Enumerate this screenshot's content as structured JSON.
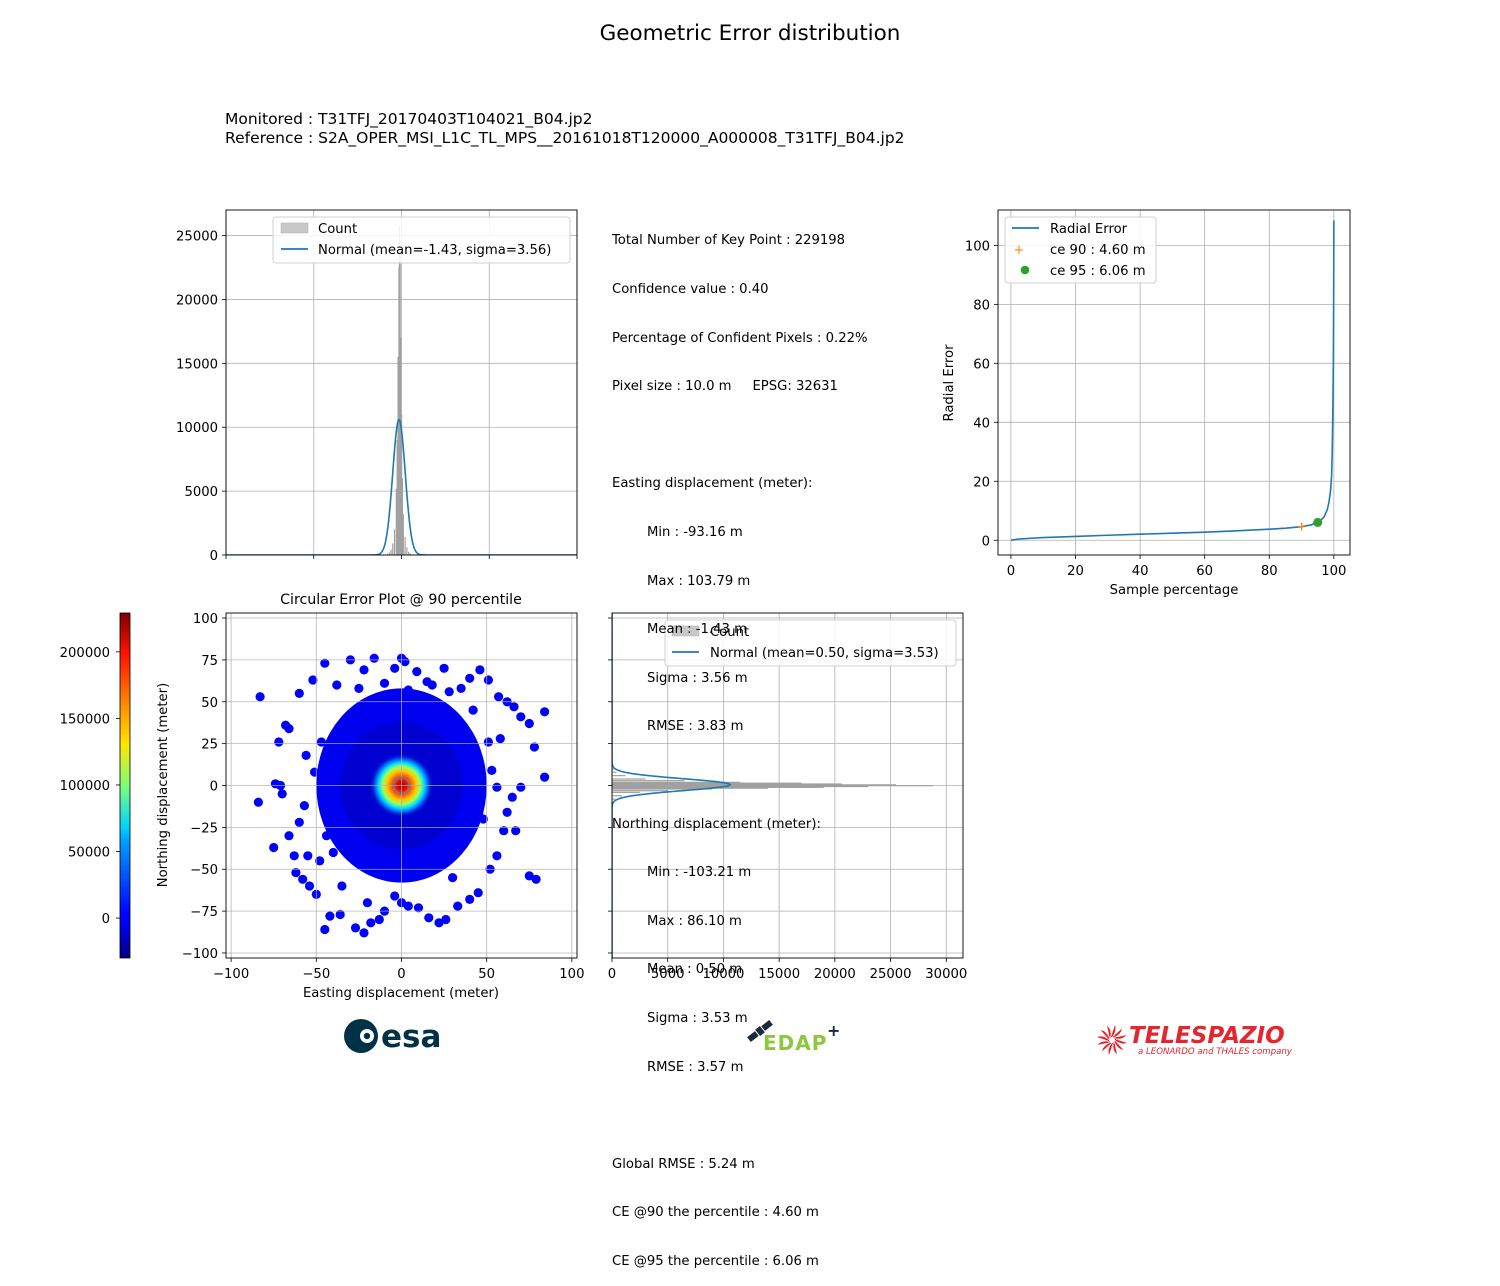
{
  "figure": {
    "title": "Geometric Error distribution",
    "monitored_label": "Monitored : T31TFJ_20170403T104021_B04.jp2",
    "reference_label": "Reference : S2A_OPER_MSI_L1C_TL_MPS__20161018T120000_A000008_T31TFJ_B04.jp2"
  },
  "stats": {
    "lines": [
      "Total Number of Key Point : 229198",
      "Confidence value : 0.40",
      "Percentage of Confident Pixels : 0.22%",
      "Pixel size : 10.0 m     EPSG: 32631"
    ],
    "easting_header": "Easting displacement (meter):",
    "easting": [
      "Min : -93.16 m",
      "Max : 103.79 m",
      "Mean : -1.43 m",
      "Sigma : 3.56 m",
      "RMSE : 3.83 m"
    ],
    "northing_header": "Northing displacement (meter):",
    "northing": [
      "Min : -103.21 m",
      "Max : 86.10 m",
      "Mean : 0.50 m",
      "Sigma : 3.53 m",
      "RMSE : 3.57 m"
    ],
    "global": [
      "Global RMSE : 5.24 m",
      "CE @90 the percentile : 4.60 m",
      "CE @95 the percentile : 6.06 m"
    ]
  },
  "logos": {
    "esa": "esa",
    "edap": "EDAP",
    "telespazio": "TELESPAZIO",
    "telespazio_tag": "a LEONARDO and THALES company"
  },
  "colors": {
    "line": "#1f77b4",
    "hist": "#a0a0a0",
    "ce90": "#ff7f0e",
    "ce95": "#2ca02c",
    "scatter": "#0000ff"
  },
  "chart_data": [
    {
      "id": "easting_hist",
      "type": "bar",
      "title": "",
      "xlabel": "",
      "ylabel": "",
      "xlim": [
        -100,
        100
      ],
      "ylim": [
        0,
        27000
      ],
      "yticks": [
        0,
        5000,
        10000,
        15000,
        20000,
        25000
      ],
      "grid": true,
      "legend": "upper-center",
      "series": [
        {
          "name": "Count",
          "kind": "hist",
          "bins": [
            [
              -10,
              20
            ],
            [
              -9,
              40
            ],
            [
              -8,
              90
            ],
            [
              -7,
              200
            ],
            [
              -6,
              420
            ],
            [
              -5,
              900
            ],
            [
              -4,
              2000
            ],
            [
              -3,
              5200
            ],
            [
              -2.5,
              9000
            ],
            [
              -2,
              15500
            ],
            [
              -1.5,
              22500
            ],
            [
              -1.2,
              25800
            ],
            [
              -0.8,
              24000
            ],
            [
              -0.4,
              17000
            ],
            [
              0,
              11000
            ],
            [
              0.5,
              6000
            ],
            [
              1,
              3200
            ],
            [
              2,
              1400
            ],
            [
              3,
              600
            ],
            [
              4,
              250
            ],
            [
              5,
              120
            ],
            [
              6,
              50
            ]
          ]
        },
        {
          "name": "Normal (mean=-1.43, sigma=3.56)",
          "kind": "normal",
          "mean": -1.43,
          "sigma": 3.56,
          "peak": 10600
        }
      ]
    },
    {
      "id": "radial_error",
      "type": "line",
      "title": "",
      "xlabel": "Sample percentage",
      "ylabel": "Radial Error",
      "xlim": [
        -4,
        105
      ],
      "ylim": [
        -5,
        112
      ],
      "xticks": [
        0,
        20,
        40,
        60,
        80,
        100
      ],
      "yticks": [
        0,
        20,
        40,
        60,
        80,
        100
      ],
      "grid": true,
      "legend": "upper-left",
      "series": [
        {
          "name": "Radial Error",
          "x": [
            0,
            2,
            5,
            10,
            20,
            30,
            40,
            50,
            60,
            70,
            80,
            85,
            90,
            93,
            95,
            96,
            97,
            98,
            98.5,
            99,
            99.3,
            99.5,
            99.7,
            99.85,
            99.95,
            100
          ],
          "y": [
            0,
            0.35,
            0.6,
            0.9,
            1.3,
            1.7,
            2.05,
            2.4,
            2.75,
            3.2,
            3.75,
            4.1,
            4.6,
            5.2,
            6.06,
            6.8,
            8.0,
            10.5,
            13.0,
            17.0,
            22.0,
            30.0,
            45.0,
            60.0,
            85.0,
            108.5
          ]
        },
        {
          "name": "ce 90 : 4.60 m",
          "kind": "marker",
          "marker": "plus",
          "x": 90,
          "y": 4.6
        },
        {
          "name": "ce 95 : 6.06 m",
          "kind": "marker",
          "marker": "circle",
          "x": 95,
          "y": 6.06
        }
      ]
    },
    {
      "id": "ce_scatter",
      "type": "scatter",
      "title": "Circular Error Plot @ 90 percentile",
      "xlabel": "Easting displacement (meter)",
      "ylabel": "Northing displacement (meter)",
      "xlim": [
        -103,
        103
      ],
      "ylim": [
        -103,
        103
      ],
      "xticks": [
        -100,
        -50,
        0,
        50,
        100
      ],
      "yticks": [
        -100,
        -75,
        -50,
        -25,
        0,
        25,
        50,
        75,
        100
      ],
      "grid": true,
      "colorbar": {
        "min": -30000,
        "max": 229198,
        "ticks": [
          0,
          50000,
          100000,
          150000,
          200000
        ]
      },
      "ce90_radius": 4.6,
      "points": [
        [
          -83,
          53
        ],
        [
          -84,
          -10
        ],
        [
          -74,
          1
        ],
        [
          -71,
          0
        ],
        [
          -75,
          -37
        ],
        [
          -63,
          -42
        ],
        [
          -66,
          -30
        ],
        [
          -60,
          -22
        ],
        [
          -70,
          -5
        ],
        [
          -72,
          26
        ],
        [
          -66,
          34
        ],
        [
          -68,
          36
        ],
        [
          -60,
          55
        ],
        [
          -52,
          63
        ],
        [
          -45,
          73
        ],
        [
          -38,
          60
        ],
        [
          -22,
          69
        ],
        [
          -25,
          58
        ],
        [
          -16,
          76
        ],
        [
          -10,
          61
        ],
        [
          -4,
          70
        ],
        [
          0,
          76
        ],
        [
          2,
          74
        ],
        [
          4,
          57
        ],
        [
          9,
          68
        ],
        [
          15,
          62
        ],
        [
          18,
          60
        ],
        [
          28,
          56
        ],
        [
          35,
          58
        ],
        [
          40,
          64
        ],
        [
          46,
          69
        ],
        [
          51,
          63
        ],
        [
          57,
          53
        ],
        [
          62,
          50
        ],
        [
          66,
          47
        ],
        [
          70,
          41
        ],
        [
          75,
          37
        ],
        [
          84,
          44
        ],
        [
          78,
          23
        ],
        [
          84,
          5
        ],
        [
          70,
          -1
        ],
        [
          65,
          -7
        ],
        [
          62,
          -16
        ],
        [
          67,
          -27
        ],
        [
          60,
          -27
        ],
        [
          75,
          -54
        ],
        [
          79,
          -56
        ],
        [
          56,
          -42
        ],
        [
          52,
          -50
        ],
        [
          45,
          -64
        ],
        [
          40,
          -68
        ],
        [
          33,
          -72
        ],
        [
          26,
          -80
        ],
        [
          22,
          -82
        ],
        [
          16,
          -79
        ],
        [
          10,
          -73
        ],
        [
          4,
          -72
        ],
        [
          0,
          -70
        ],
        [
          -4,
          -66
        ],
        [
          -10,
          -75
        ],
        [
          -13,
          -80
        ],
        [
          -18,
          -82
        ],
        [
          -22,
          -88
        ],
        [
          -27,
          -85
        ],
        [
          -36,
          -77
        ],
        [
          -42,
          -78
        ],
        [
          -45,
          -86
        ],
        [
          -50,
          -65
        ],
        [
          -54,
          -60
        ],
        [
          -58,
          -56
        ],
        [
          -62,
          -52
        ],
        [
          -55,
          -42
        ],
        [
          -48,
          -45
        ],
        [
          -40,
          -40
        ],
        [
          -57,
          -12
        ],
        [
          -51,
          8
        ],
        [
          -56,
          18
        ],
        [
          -47,
          26
        ],
        [
          -44,
          -30
        ],
        [
          48,
          -20
        ],
        [
          56,
          -1
        ],
        [
          53,
          9
        ],
        [
          51,
          26
        ],
        [
          58,
          28
        ],
        [
          42,
          45
        ],
        [
          -30,
          75
        ],
        [
          -20,
          -70
        ],
        [
          25,
          70
        ],
        [
          -35,
          -60
        ],
        [
          30,
          -55
        ]
      ]
    },
    {
      "id": "northing_hist",
      "type": "bar",
      "title": "",
      "xlabel": "",
      "ylabel": "",
      "xlim": [
        0,
        31500
      ],
      "ylim": [
        -103,
        103
      ],
      "xticks": [
        0,
        5000,
        10000,
        15000,
        20000,
        25000,
        30000
      ],
      "grid": true,
      "legend": "upper-center",
      "orientation": "horizontal",
      "series": [
        {
          "name": "Count",
          "kind": "hist",
          "bins": [
            [
              -10,
              80
            ],
            [
              -8,
              300
            ],
            [
              -6,
              900
            ],
            [
              -4,
              2500
            ],
            [
              -3,
              5000
            ],
            [
              -2,
              9000
            ],
            [
              -1.5,
              14000
            ],
            [
              -1,
              19000
            ],
            [
              -0.5,
              23000
            ],
            [
              0,
              28800
            ],
            [
              0.5,
              25500
            ],
            [
              1,
              20600
            ],
            [
              1.5,
              17000
            ],
            [
              2,
              11500
            ],
            [
              3,
              6500
            ],
            [
              4,
              3000
            ],
            [
              6,
              1200
            ],
            [
              8,
              400
            ],
            [
              10,
              150
            ]
          ]
        },
        {
          "name": "Normal (mean=0.50, sigma=3.53)",
          "kind": "normal",
          "mean": 0.5,
          "sigma": 3.53,
          "peak": 10600
        }
      ]
    }
  ]
}
